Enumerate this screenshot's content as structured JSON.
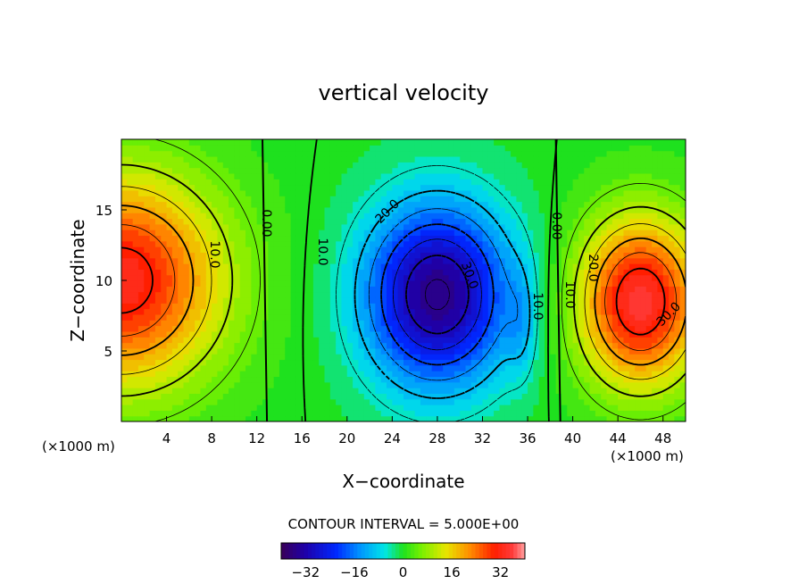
{
  "chart_data": {
    "type": "contour",
    "title": "vertical velocity",
    "xlabel": "X−coordinate",
    "ylabel": "Z−coordinate",
    "x_unit": "(×1000 m)",
    "x_unit_right": "(×1000 m)",
    "xlim": [
      0,
      50
    ],
    "ylim": [
      0,
      20
    ],
    "x_ticks": [
      "4",
      "8",
      "12",
      "16",
      "20",
      "24",
      "28",
      "32",
      "36",
      "40",
      "44",
      "48"
    ],
    "y_ticks": [
      "5",
      "10",
      "15"
    ],
    "contour_interval_text": "CONTOUR INTERVAL = 5.000E+00",
    "contour_interval": 5,
    "colorbar": {
      "range": [
        -40,
        40
      ],
      "tick_labels": [
        "−32",
        "−16",
        "0",
        "16",
        "32"
      ],
      "colormap": "rainbow (purple → blue → cyan → green → yellow → red → pink)"
    },
    "contour_labels": [
      "10.0",
      "0.00",
      "10.0",
      "20.0",
      "30.0",
      "10.0",
      "0.00",
      "10.0",
      "20.0",
      "30.0"
    ],
    "field": {
      "description": "vertical velocity pattern: upward max near left edge and right side, downward cell in center",
      "extrema": [
        {
          "kind": "max",
          "x": 0,
          "z": 10,
          "value": 33
        },
        {
          "kind": "min",
          "x": 28,
          "z": 9,
          "value": -36
        },
        {
          "kind": "max",
          "x": 46,
          "z": 8.5,
          "value": 35
        }
      ],
      "zero_lines_x": [
        12.5,
        38.5
      ]
    }
  }
}
